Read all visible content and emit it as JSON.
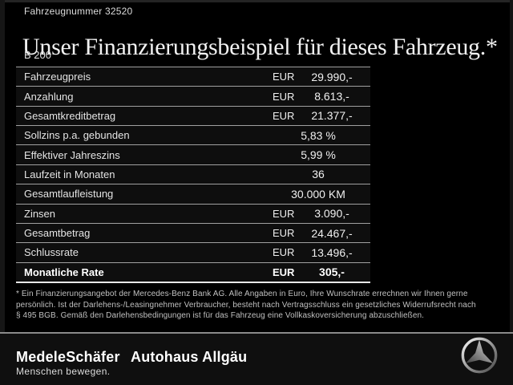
{
  "header": {
    "vehicle_number": "Fahrzeugnummer 32520",
    "title": "Unser Finanzierungsbeispiel für dieses Fahrzeug.*",
    "model": "B 200"
  },
  "table": {
    "rows": [
      {
        "label": "Fahrzeugpreis",
        "currency": "EUR",
        "value": "29.990,-",
        "bold": false
      },
      {
        "label": "Anzahlung",
        "currency": "EUR",
        "value": "8.613,-",
        "bold": false
      },
      {
        "label": "Gesamtkreditbetrag",
        "currency": "EUR",
        "value": "21.377,-",
        "bold": false
      },
      {
        "label": "Sollzins p.a. gebunden",
        "currency": "",
        "value": "5,83 %",
        "bold": false
      },
      {
        "label": "Effektiver Jahreszins",
        "currency": "",
        "value": "5,99 %",
        "bold": false
      },
      {
        "label": "Laufzeit in Monaten",
        "currency": "",
        "value": "36",
        "bold": false
      },
      {
        "label": "Gesamtlaufleistung",
        "currency": "",
        "value": "30.000 KM",
        "bold": false
      },
      {
        "label": "Zinsen",
        "currency": "EUR",
        "value": "3.090,-",
        "bold": false
      },
      {
        "label": "Gesamtbetrag",
        "currency": "EUR",
        "value": "24.467,-",
        "bold": false
      },
      {
        "label": "Schlussrate",
        "currency": "EUR",
        "value": "13.496,-",
        "bold": false
      },
      {
        "label": "Monatliche Rate",
        "currency": "EUR",
        "value": "305,-",
        "bold": true
      }
    ]
  },
  "footnote": {
    "lines": [
      "* Ein Finanzierungsangebot der Mercedes-Benz Bank AG. Alle Angaben in Euro, Ihre Wunschrate errechnen wir Ihnen gerne",
      "persönlich. Ist der Darlehens-/Leasingnehmer Verbraucher, besteht nach Vertragsschluss ein gesetzliches Widerrufsrecht nach",
      "§ 495 BGB. Gemäß den Darlehensbedingungen ist für das Fahrzeug eine Vollkaskoversicherung abzuschließen."
    ]
  },
  "footer": {
    "dealer_logo": "MedeleSchäfer",
    "dealer_tagline": "Menschen bewegen.",
    "dealer_secondary": "Autohaus Allgäu",
    "brand_icon": "mercedes-star-icon"
  },
  "colors": {
    "background": "#000000",
    "table_line": "#a0a0a0",
    "table_bottom_line": "#e6e6e6",
    "text": "#e8e8e8",
    "footnote_text": "#c0c0c0",
    "separator": "#8a8a8a",
    "footer_background": "#0f0f0f",
    "star_silver_light": "#fafafa",
    "star_silver_dark": "#4a4a4a"
  }
}
